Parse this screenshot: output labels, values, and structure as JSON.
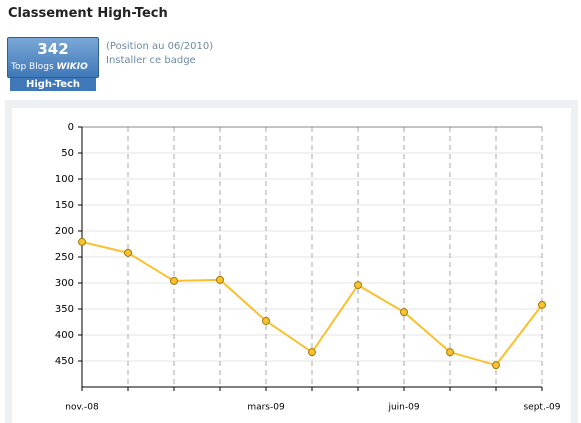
{
  "header": {
    "title": "Classement High-Tech"
  },
  "badge": {
    "rank": "342",
    "label": "Top Blogs",
    "brand": "WIKIO",
    "category": "High-Tech",
    "position": "(Position au 06/2010)",
    "install": "Installer ce badge"
  },
  "chart_data": {
    "type": "line",
    "categories": [
      "nov.-08",
      null,
      null,
      null,
      "mars-09",
      null,
      null,
      "juin-09",
      null,
      null,
      "sept.-09"
    ],
    "values": [
      221,
      242,
      296,
      294,
      373,
      433,
      304,
      356,
      433,
      458,
      342
    ],
    "color": "#fbc02d",
    "ylim": [
      0,
      500
    ],
    "yticks": [
      0,
      50,
      100,
      150,
      200,
      250,
      300,
      350,
      400,
      450
    ],
    "inverted": true,
    "grid": true
  }
}
